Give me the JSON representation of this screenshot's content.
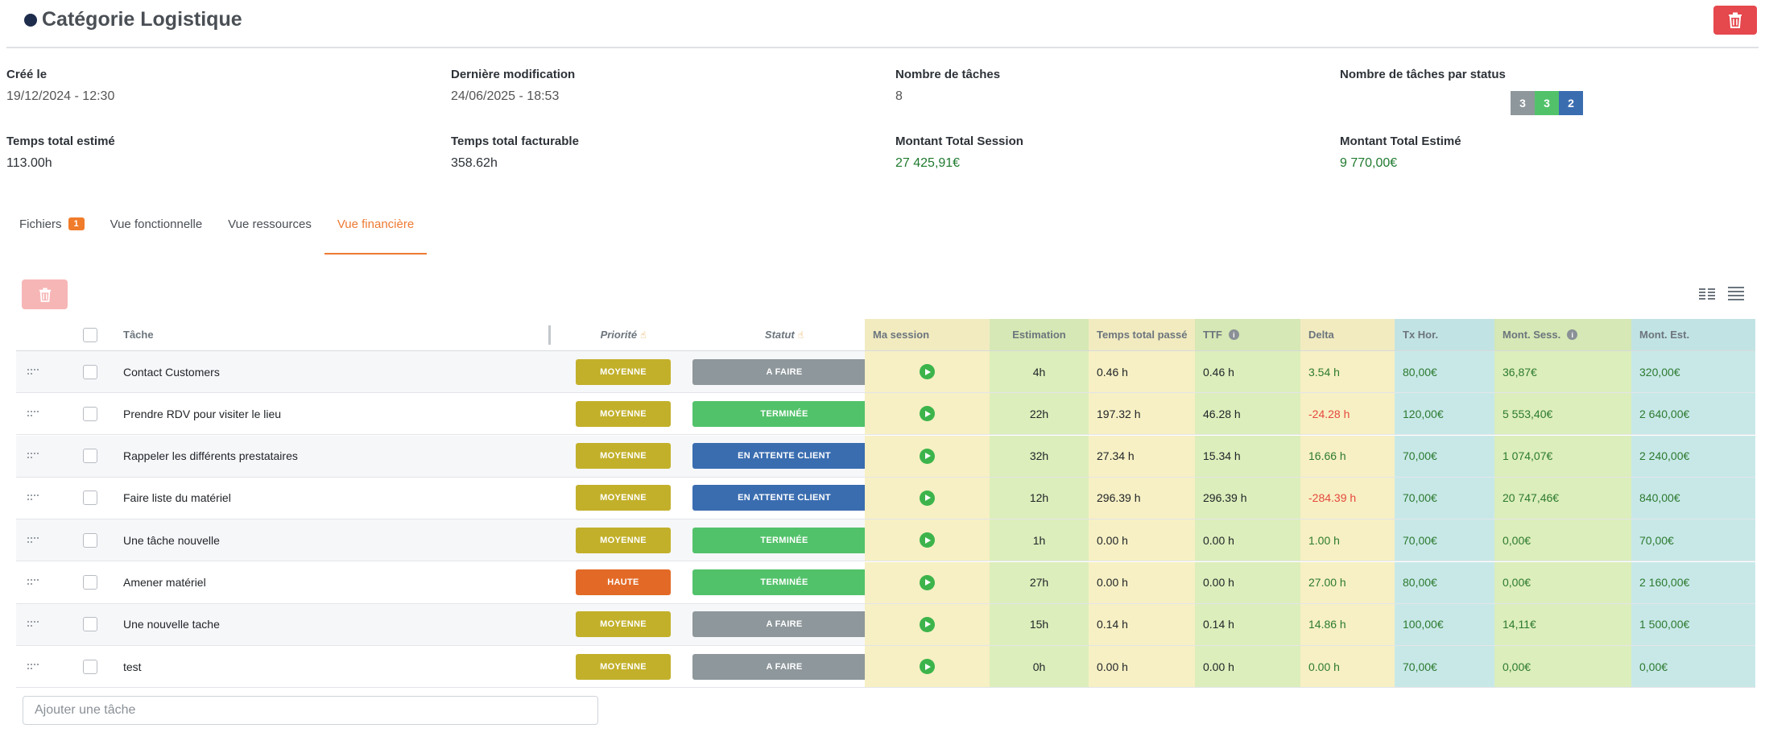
{
  "header": {
    "title": "Catégorie Logistique"
  },
  "info": {
    "created_label": "Créé le",
    "created_value": "19/12/2024 - 12:30",
    "modified_label": "Dernière modification",
    "modified_value": "24/06/2025 - 18:53",
    "tasks_count_label": "Nombre de tâches",
    "tasks_count_value": "8",
    "tasks_by_status_label": "Nombre de tâches par status",
    "status_counts": [
      {
        "value": "3",
        "color": "#8e979b"
      },
      {
        "value": "3",
        "color": "#52c26a"
      },
      {
        "value": "2",
        "color": "#3a6db0"
      }
    ],
    "est_total_label": "Temps total estimé",
    "est_total_value": "113.00h",
    "billable_total_label": "Temps total facturable",
    "billable_total_value": "358.62h",
    "session_amount_label": "Montant Total Session",
    "session_amount_value": "27 425,91€",
    "est_amount_label": "Montant Total Estimé",
    "est_amount_value": "9 770,00€"
  },
  "tabs": [
    {
      "label": "Fichiers",
      "badge": "1",
      "active": false
    },
    {
      "label": "Vue fonctionnelle",
      "active": false
    },
    {
      "label": "Vue ressources",
      "active": false
    },
    {
      "label": "Vue financière",
      "active": true
    }
  ],
  "table": {
    "columns": {
      "task": "Tâche",
      "priority": "Priorité",
      "status": "Statut",
      "session": "Ma session",
      "estimation": "Estimation",
      "total_time": "Temps total passé",
      "ttf": "TTF",
      "delta": "Delta",
      "rate": "Tx Hor.",
      "session_amount": "Mont. Sess.",
      "est_amount": "Mont. Est."
    },
    "colors": {
      "priority_moyenne": "#c2b02a",
      "priority_haute": "#e36a26",
      "status_afaire": "#8e979b",
      "status_terminee": "#52c26a",
      "status_attente": "#3a6db0"
    },
    "rows": [
      {
        "task": "Contact Customers",
        "priority": "MOYENNE",
        "priority_key": "moyenne",
        "status": "A FAIRE",
        "status_key": "afaire",
        "estimation": "4h",
        "total_time": "0.46 h",
        "ttf": "0.46 h",
        "delta": "3.54 h",
        "delta_neg": false,
        "rate": "80,00€",
        "session_amount": "36,87€",
        "est_amount": "320,00€"
      },
      {
        "task": "Prendre RDV pour visiter le lieu",
        "priority": "MOYENNE",
        "priority_key": "moyenne",
        "status": "TERMINÉE",
        "status_key": "terminee",
        "estimation": "22h",
        "total_time": "197.32 h",
        "ttf": "46.28 h",
        "delta": "-24.28 h",
        "delta_neg": true,
        "rate": "120,00€",
        "session_amount": "5 553,40€",
        "est_amount": "2 640,00€"
      },
      {
        "task": "Rappeler les différents prestataires",
        "priority": "MOYENNE",
        "priority_key": "moyenne",
        "status": "EN ATTENTE CLIENT",
        "status_key": "attente",
        "estimation": "32h",
        "total_time": "27.34 h",
        "ttf": "15.34 h",
        "delta": "16.66 h",
        "delta_neg": false,
        "rate": "70,00€",
        "session_amount": "1 074,07€",
        "est_amount": "2 240,00€"
      },
      {
        "task": "Faire liste du matériel",
        "priority": "MOYENNE",
        "priority_key": "moyenne",
        "status": "EN ATTENTE CLIENT",
        "status_key": "attente",
        "estimation": "12h",
        "total_time": "296.39 h",
        "ttf": "296.39 h",
        "delta": "-284.39 h",
        "delta_neg": true,
        "rate": "70,00€",
        "session_amount": "20 747,46€",
        "est_amount": "840,00€"
      },
      {
        "task": "Une tâche nouvelle",
        "priority": "MOYENNE",
        "priority_key": "moyenne",
        "status": "TERMINÉE",
        "status_key": "terminee",
        "estimation": "1h",
        "total_time": "0.00 h",
        "ttf": "0.00 h",
        "delta": "1.00 h",
        "delta_neg": false,
        "rate": "70,00€",
        "session_amount": "0,00€",
        "est_amount": "70,00€"
      },
      {
        "task": "Amener matériel",
        "priority": "HAUTE",
        "priority_key": "haute",
        "status": "TERMINÉE",
        "status_key": "terminee",
        "estimation": "27h",
        "total_time": "0.00 h",
        "ttf": "0.00 h",
        "delta": "27.00 h",
        "delta_neg": false,
        "rate": "80,00€",
        "session_amount": "0,00€",
        "est_amount": "2 160,00€"
      },
      {
        "task": "Une nouvelle tache",
        "priority": "MOYENNE",
        "priority_key": "moyenne",
        "status": "A FAIRE",
        "status_key": "afaire",
        "estimation": "15h",
        "total_time": "0.14 h",
        "ttf": "0.14 h",
        "delta": "14.86 h",
        "delta_neg": false,
        "rate": "100,00€",
        "session_amount": "14,11€",
        "est_amount": "1 500,00€"
      },
      {
        "task": "test",
        "priority": "MOYENNE",
        "priority_key": "moyenne",
        "status": "A FAIRE",
        "status_key": "afaire",
        "estimation": "0h",
        "total_time": "0.00 h",
        "ttf": "0.00 h",
        "delta": "0.00 h",
        "delta_neg": false,
        "rate": "70,00€",
        "session_amount": "0,00€",
        "est_amount": "0,00€"
      }
    ]
  },
  "add_task": {
    "placeholder": "Ajouter une tâche"
  }
}
